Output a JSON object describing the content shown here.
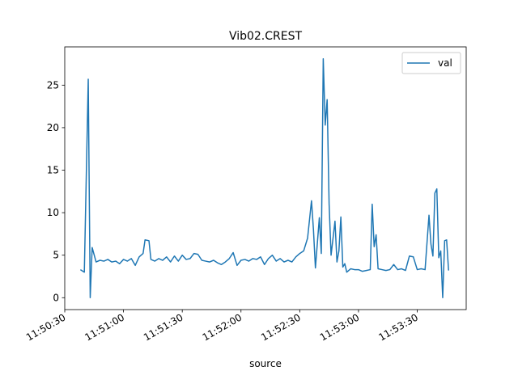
{
  "chart_data": {
    "type": "line",
    "title": "Vib02.CREST",
    "xlabel": "source",
    "x": [
      "11:50:38",
      "11:50:40",
      "11:50:42",
      "11:50:43",
      "11:50:44",
      "11:50:46",
      "11:50:48",
      "11:50:50",
      "11:50:52",
      "11:50:54",
      "11:50:56",
      "11:50:58",
      "11:51:00",
      "11:51:02",
      "11:51:04",
      "11:51:06",
      "11:51:08",
      "11:51:10",
      "11:51:11",
      "11:51:13",
      "11:51:14",
      "11:51:16",
      "11:51:18",
      "11:51:20",
      "11:51:22",
      "11:51:24",
      "11:51:26",
      "11:51:28",
      "11:51:30",
      "11:51:32",
      "11:51:34",
      "11:51:36",
      "11:51:38",
      "11:51:40",
      "11:51:42",
      "11:51:44",
      "11:51:46",
      "11:51:48",
      "11:51:50",
      "11:51:52",
      "11:51:54",
      "11:51:56",
      "11:51:58",
      "11:52:00",
      "11:52:02",
      "11:52:04",
      "11:52:06",
      "11:52:08",
      "11:52:10",
      "11:52:12",
      "11:52:14",
      "11:52:16",
      "11:52:18",
      "11:52:20",
      "11:52:22",
      "11:52:24",
      "11:52:26",
      "11:52:28",
      "11:52:30",
      "11:52:32",
      "11:52:34",
      "11:52:36",
      "11:52:37",
      "11:52:38",
      "11:52:40",
      "11:52:41",
      "11:52:42",
      "11:52:43",
      "11:52:44",
      "11:52:45",
      "11:52:46",
      "11:52:48",
      "11:52:49",
      "11:52:50",
      "11:52:51",
      "11:52:52",
      "11:52:53",
      "11:52:54",
      "11:52:56",
      "11:52:58",
      "11:53:00",
      "11:53:02",
      "11:53:04",
      "11:53:06",
      "11:53:07",
      "11:53:08",
      "11:53:09",
      "11:53:10",
      "11:53:12",
      "11:53:14",
      "11:53:16",
      "11:53:18",
      "11:53:20",
      "11:53:22",
      "11:53:24",
      "11:53:26",
      "11:53:28",
      "11:53:30",
      "11:53:32",
      "11:53:34",
      "11:53:36",
      "11:53:37",
      "11:53:38",
      "11:53:39",
      "11:53:40",
      "11:53:41",
      "11:53:42",
      "11:53:43",
      "11:53:44",
      "11:53:45",
      "11:53:46"
    ],
    "series": [
      {
        "name": "val",
        "color": "#1f77b4",
        "values": [
          3.3,
          3.0,
          25.7,
          0.0,
          5.9,
          4.2,
          4.4,
          4.3,
          4.5,
          4.2,
          4.3,
          4.0,
          4.5,
          4.3,
          4.6,
          3.8,
          4.8,
          5.2,
          6.8,
          6.7,
          4.5,
          4.3,
          4.6,
          4.4,
          4.8,
          4.2,
          4.9,
          4.3,
          5.0,
          4.5,
          4.6,
          5.2,
          5.1,
          4.4,
          4.3,
          4.2,
          4.4,
          4.1,
          3.9,
          4.2,
          4.6,
          5.3,
          3.8,
          4.4,
          4.5,
          4.3,
          4.6,
          4.5,
          4.8,
          3.9,
          4.6,
          5.0,
          4.3,
          4.6,
          4.2,
          4.4,
          4.2,
          4.8,
          5.2,
          5.5,
          7.0,
          11.4,
          8.0,
          3.5,
          9.4,
          5.2,
          28.1,
          20.3,
          23.3,
          11.0,
          5.0,
          9.0,
          4.2,
          5.5,
          9.5,
          3.6,
          4.0,
          3.0,
          3.4,
          3.3,
          3.3,
          3.1,
          3.2,
          3.3,
          11.0,
          6.0,
          7.4,
          3.4,
          3.3,
          3.2,
          3.3,
          3.9,
          3.3,
          3.4,
          3.2,
          4.9,
          4.8,
          3.3,
          3.4,
          3.3,
          9.7,
          6.3,
          4.9,
          12.3,
          12.8,
          4.7,
          5.5,
          0.0,
          6.7,
          6.8,
          3.2
        ]
      }
    ],
    "xlim": [
      "11:50:30",
      "11:53:55"
    ],
    "xticks": [
      "11:50:30",
      "11:51:00",
      "11:51:30",
      "11:52:00",
      "11:52:30",
      "11:53:00",
      "11:53:30"
    ],
    "ylim": [
      -1.4,
      29.5
    ],
    "yticks": [
      0,
      5,
      10,
      15,
      20,
      25
    ],
    "legend": "upper right"
  }
}
